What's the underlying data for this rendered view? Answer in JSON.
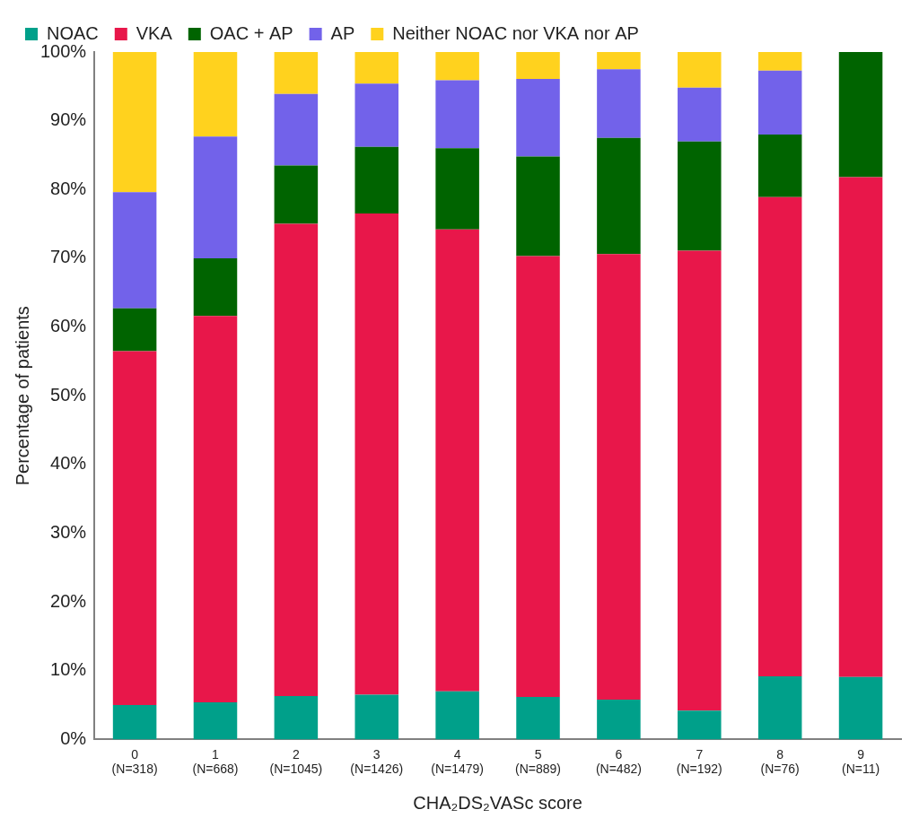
{
  "chart_data": {
    "type": "bar",
    "stacked": true,
    "grid": false,
    "legend": "top",
    "x_label": "CHA₂DS₂VASc score",
    "y_label": "Percentage of patients",
    "categories": [
      [
        "0",
        "(N=318)"
      ],
      [
        "1",
        "(N=668)"
      ],
      [
        "2",
        "(N=1045)"
      ],
      [
        "3",
        "(N=1426)"
      ],
      [
        "4",
        "(N=1479)"
      ],
      [
        "5",
        "(N=889)"
      ],
      [
        "6",
        "(N=482)"
      ],
      [
        "7",
        "(N=192)"
      ],
      [
        "8",
        "(N=76)"
      ],
      [
        "9",
        "(N=11)"
      ]
    ],
    "ylim": [
      0,
      100
    ],
    "yticks": [
      {
        "value": 0,
        "label": "0%"
      },
      {
        "value": 10,
        "label": "10%"
      },
      {
        "value": 20,
        "label": "20%"
      },
      {
        "value": 30,
        "label": "30%"
      },
      {
        "value": 40,
        "label": "40%"
      },
      {
        "value": 50,
        "label": "50%"
      },
      {
        "value": 60,
        "label": "60%"
      },
      {
        "value": 70,
        "label": "70%"
      },
      {
        "value": 80,
        "label": "80%"
      },
      {
        "value": 90,
        "label": "90%"
      },
      {
        "value": 100,
        "label": "100%"
      }
    ],
    "series": [
      {
        "name": "NOAC",
        "color": "#00a08a",
        "values": [
          5.0,
          5.4,
          6.3,
          6.5,
          7.0,
          6.2,
          5.8,
          4.2,
          9.2,
          9.1
        ]
      },
      {
        "name": "VKA",
        "color": "#e8174a",
        "values": [
          51.5,
          56.2,
          68.7,
          70.0,
          67.2,
          64.1,
          64.8,
          66.9,
          69.7,
          72.7
        ]
      },
      {
        "name": "OAC + AP",
        "color": "#006400",
        "values": [
          6.2,
          8.4,
          8.5,
          9.7,
          11.8,
          14.5,
          16.9,
          15.9,
          9.1,
          18.2
        ]
      },
      {
        "name": "AP",
        "color": "#7262ea",
        "values": [
          16.9,
          17.7,
          10.4,
          9.2,
          9.9,
          11.3,
          10.0,
          7.8,
          9.3,
          0
        ]
      },
      {
        "name": "Neither NOAC nor VKA nor AP",
        "color": "#ffd21e",
        "values": [
          20.4,
          12.3,
          6.1,
          4.6,
          4.1,
          3.9,
          2.5,
          5.2,
          2.7,
          0
        ]
      }
    ]
  }
}
